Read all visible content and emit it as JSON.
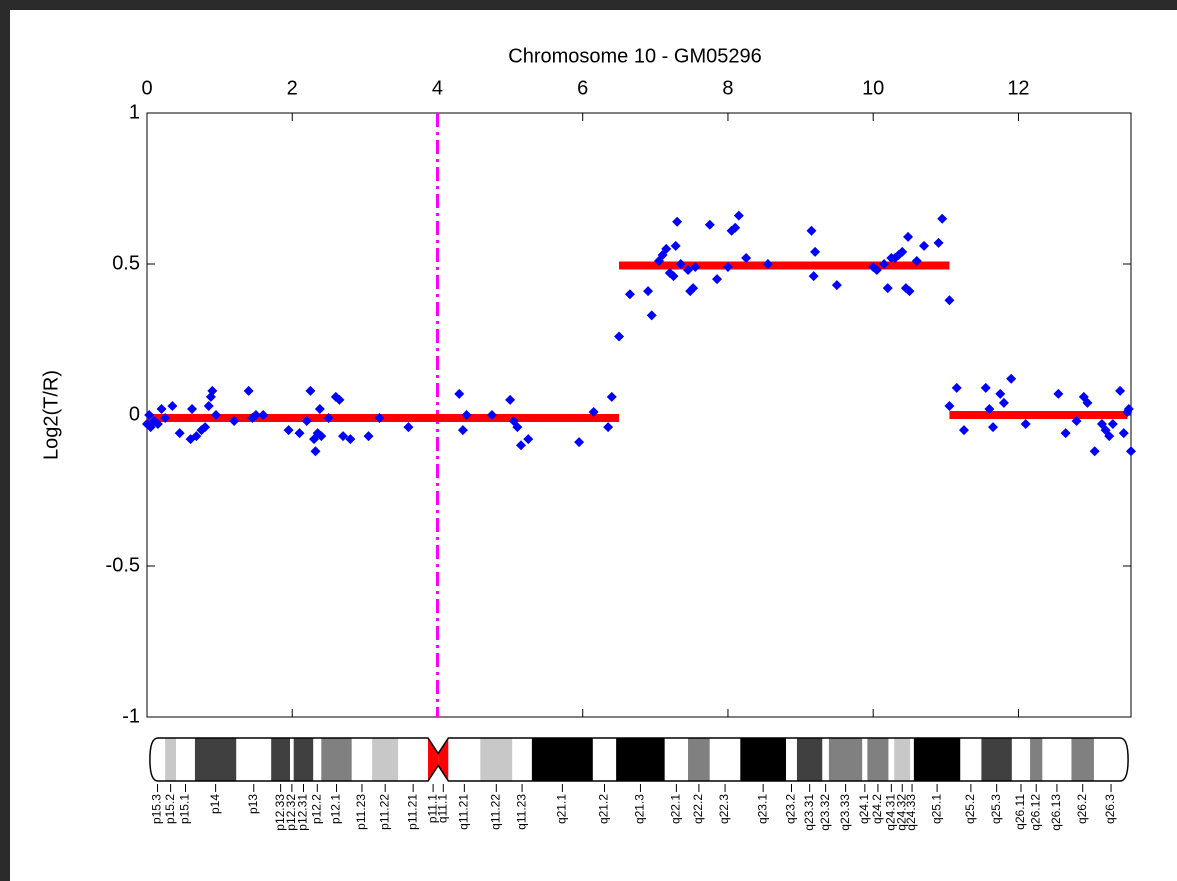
{
  "chart_data": {
    "type": "scatter",
    "title": "Chromosome 10 - GM05296",
    "ylabel": "Log2(T/R)",
    "color": "#0000ff",
    "x": [
      0.0,
      0.03,
      0.05,
      0.1,
      0.15,
      0.2,
      0.25,
      0.35,
      0.45,
      0.6,
      0.62,
      0.68,
      0.75,
      0.8,
      0.85,
      0.88,
      0.9,
      0.95,
      1.2,
      1.4,
      1.45,
      1.5,
      1.6,
      1.95,
      2.1,
      2.2,
      2.25,
      2.3,
      2.32,
      2.35,
      2.38,
      2.4,
      2.5,
      2.6,
      2.65,
      2.7,
      2.8,
      3.05,
      3.2,
      3.6,
      4.3,
      4.35,
      4.4,
      4.75,
      5.0,
      5.05,
      5.1,
      5.15,
      5.25,
      5.95,
      6.15,
      6.35,
      6.4,
      6.5,
      6.65,
      6.9,
      6.95,
      7.05,
      7.1,
      7.15,
      7.2,
      7.25,
      7.28,
      7.3,
      7.35,
      7.45,
      7.48,
      7.52,
      7.55,
      7.75,
      7.85,
      8.0,
      8.05,
      8.1,
      8.15,
      8.25,
      8.55,
      9.15,
      9.18,
      9.2,
      9.5,
      10.0,
      10.05,
      10.15,
      10.2,
      10.25,
      10.3,
      10.35,
      10.4,
      10.45,
      10.5,
      10.48,
      10.6,
      10.7,
      10.9,
      10.95,
      11.05,
      11.05,
      11.15,
      11.25,
      11.55,
      11.6,
      11.65,
      11.75,
      11.8,
      11.9,
      12.1,
      12.55,
      12.65,
      12.8,
      12.9,
      12.95,
      13.05,
      13.15,
      13.2,
      13.25,
      13.3,
      13.4,
      13.45,
      13.5,
      13.52,
      13.55
    ],
    "values": [
      -0.03,
      0.0,
      -0.04,
      -0.02,
      -0.03,
      0.02,
      -0.01,
      0.03,
      -0.06,
      -0.08,
      0.02,
      -0.07,
      -0.05,
      -0.04,
      0.03,
      0.06,
      0.08,
      0.0,
      -0.02,
      0.08,
      -0.01,
      0.0,
      0.0,
      -0.05,
      -0.06,
      -0.02,
      0.08,
      -0.08,
      -0.12,
      -0.06,
      0.02,
      -0.07,
      -0.01,
      0.06,
      0.05,
      -0.07,
      -0.08,
      -0.07,
      -0.01,
      -0.04,
      0.07,
      -0.05,
      0.0,
      0.0,
      0.05,
      -0.02,
      -0.04,
      -0.1,
      -0.08,
      -0.09,
      0.01,
      -0.04,
      0.06,
      0.26,
      0.4,
      0.41,
      0.33,
      0.51,
      0.53,
      0.55,
      0.47,
      0.46,
      0.56,
      0.64,
      0.5,
      0.48,
      0.41,
      0.42,
      0.49,
      0.63,
      0.45,
      0.49,
      0.61,
      0.62,
      0.66,
      0.52,
      0.5,
      0.61,
      0.46,
      0.54,
      0.43,
      0.49,
      0.48,
      0.5,
      0.42,
      0.52,
      0.52,
      0.53,
      0.54,
      0.42,
      0.41,
      0.59,
      0.51,
      0.56,
      0.57,
      0.65,
      0.38,
      0.03,
      0.09,
      -0.05,
      0.09,
      0.02,
      -0.04,
      0.07,
      0.04,
      0.12,
      -0.03,
      0.07,
      -0.06,
      -0.02,
      0.06,
      0.04,
      -0.12,
      -0.03,
      -0.05,
      -0.07,
      -0.03,
      0.08,
      -0.06,
      0.01,
      0.02,
      -0.12
    ],
    "segments": [
      {
        "start": 0,
        "end": 6.5,
        "value": -0.01
      },
      {
        "start": 6.5,
        "end": 11.05,
        "value": 0.495
      },
      {
        "start": 11.05,
        "end": 13.5,
        "value": 0.0
      }
    ],
    "segment_color": "#ff0000",
    "centromere_line": {
      "x": 4,
      "color": "#ff00ff"
    },
    "xlim": [
      0,
      13.55
    ],
    "ylim": [
      -1,
      1
    ],
    "xticks": [
      0,
      2,
      4,
      6,
      8,
      10,
      12
    ],
    "yticks": [
      1,
      0.5,
      0,
      -0.5,
      -1
    ],
    "ideogram": {
      "band_edges": [
        0.04,
        0.25,
        0.4,
        0.66,
        1.23,
        1.71,
        1.97,
        2.02,
        2.29,
        2.4,
        2.82,
        3.1,
        3.46,
        3.87,
        4.01,
        4.15,
        4.59,
        5.03,
        5.3,
        6.14,
        6.46,
        7.13,
        7.45,
        7.75,
        8.17,
        8.8,
        8.95,
        9.3,
        9.39,
        9.85,
        9.92,
        10.21,
        10.29,
        10.51,
        10.56,
        11.2,
        11.49,
        11.91,
        12.16,
        12.33,
        12.73,
        13.04,
        13.51
      ],
      "bands": [
        {
          "name": "p15.3",
          "color": "#ffffff"
        },
        {
          "name": "p15.2",
          "color": "#c8c8c8"
        },
        {
          "name": "p15.1",
          "color": "#ffffff"
        },
        {
          "name": "p14",
          "color": "#404040"
        },
        {
          "name": "p13",
          "color": "#ffffff"
        },
        {
          "name": "p12.33",
          "color": "#404040"
        },
        {
          "name": "p12.32",
          "color": "#ffffff"
        },
        {
          "name": "p12.31",
          "color": "#404040"
        },
        {
          "name": "p12.2",
          "color": "#ffffff"
        },
        {
          "name": "p12.1",
          "color": "#808080"
        },
        {
          "name": "p11.23",
          "color": "#ffffff"
        },
        {
          "name": "p11.22",
          "color": "#c8c8c8"
        },
        {
          "name": "p11.21",
          "color": "#ffffff"
        },
        {
          "name": "p11.1",
          "color": "#ff0000"
        },
        {
          "name": "q11.1",
          "color": "#ff0000"
        },
        {
          "name": "q11.21",
          "color": "#ffffff"
        },
        {
          "name": "q11.22",
          "color": "#c8c8c8"
        },
        {
          "name": "q11.23",
          "color": "#ffffff"
        },
        {
          "name": "q21.1",
          "color": "#000000"
        },
        {
          "name": "q21.2",
          "color": "#ffffff"
        },
        {
          "name": "q21.3",
          "color": "#000000"
        },
        {
          "name": "q22.1",
          "color": "#ffffff"
        },
        {
          "name": "q22.2",
          "color": "#808080"
        },
        {
          "name": "q22.3",
          "color": "#ffffff"
        },
        {
          "name": "q23.1",
          "color": "#000000"
        },
        {
          "name": "q23.2",
          "color": "#ffffff"
        },
        {
          "name": "q23.31",
          "color": "#404040"
        },
        {
          "name": "q23.32",
          "color": "#ffffff"
        },
        {
          "name": "q23.33",
          "color": "#808080"
        },
        {
          "name": "q24.1",
          "color": "#ffffff"
        },
        {
          "name": "q24.2",
          "color": "#808080"
        },
        {
          "name": "q24.31",
          "color": "#ffffff"
        },
        {
          "name": "q24.32",
          "color": "#c8c8c8"
        },
        {
          "name": "q24.33",
          "color": "#ffffff"
        },
        {
          "name": "q25.1",
          "color": "#000000"
        },
        {
          "name": "q25.2",
          "color": "#ffffff"
        },
        {
          "name": "q25.3",
          "color": "#404040"
        },
        {
          "name": "q26.11",
          "color": "#ffffff"
        },
        {
          "name": "q26.12",
          "color": "#808080"
        },
        {
          "name": "q26.13",
          "color": "#ffffff"
        },
        {
          "name": "q26.2",
          "color": "#808080"
        },
        {
          "name": "q26.3",
          "color": "#ffffff"
        }
      ]
    }
  }
}
